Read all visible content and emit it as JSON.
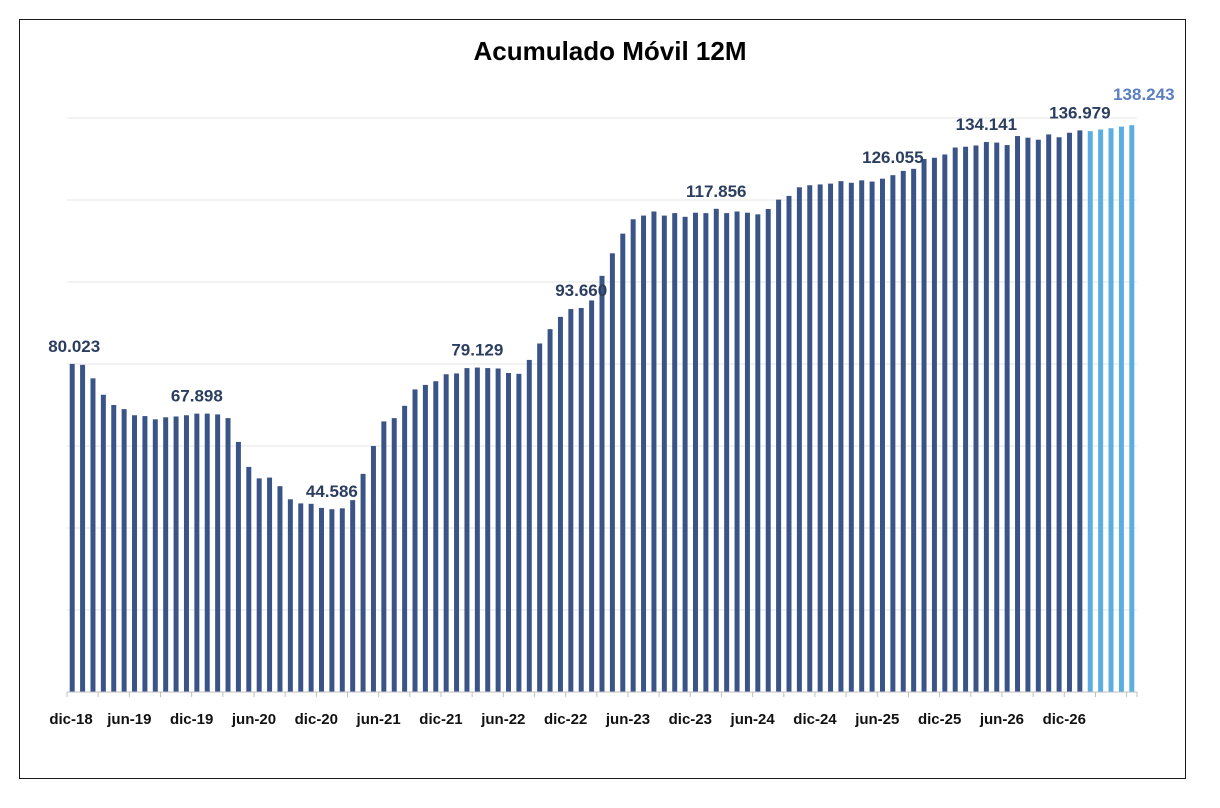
{
  "chart_data": {
    "type": "bar",
    "title": "Acumulado Móvil 12M",
    "xlabel": "",
    "ylabel": "",
    "ylim": [
      0,
      140000
    ],
    "grid": true,
    "legend": "none",
    "colors": {
      "actual": "#3a5488",
      "forecast": "#5aaee0",
      "grid": "#e6e6e6",
      "axis": "#bfbfbf"
    },
    "tick_labels": [
      "dic-18",
      "jun-19",
      "dic-19",
      "jun-20",
      "dic-20",
      "jun-21",
      "dic-21",
      "jun-22",
      "dic-22",
      "jun-23",
      "dic-23",
      "jun-24",
      "dic-24",
      "jun-25",
      "dic-25",
      "jun-26",
      "dic-26"
    ],
    "values": [
      80023,
      79800,
      76500,
      72500,
      70000,
      69000,
      67500,
      67300,
      66500,
      67000,
      67200,
      67500,
      67898,
      67900,
      67700,
      66800,
      61000,
      54900,
      52100,
      52300,
      50200,
      47000,
      46000,
      45900,
      44900,
      44586,
      44800,
      46800,
      53200,
      60000,
      66000,
      66800,
      69800,
      73800,
      74900,
      75800,
      77500,
      77700,
      79000,
      79129,
      79000,
      78900,
      77800,
      77600,
      81000,
      85000,
      88500,
      91500,
      93400,
      93660,
      95500,
      101500,
      107000,
      111800,
      115300,
      116200,
      117200,
      116200,
      116800,
      115900,
      116900,
      116800,
      117856,
      116800,
      117200,
      116900,
      116500,
      117800,
      120100,
      121000,
      123100,
      123600,
      123800,
      124000,
      124600,
      124200,
      124800,
      124500,
      125200,
      126055,
      127100,
      127600,
      130000,
      130300,
      131100,
      132800,
      133000,
      133300,
      134141,
      134000,
      133400,
      135600,
      135200,
      134700,
      136000,
      135300,
      136400,
      136979,
      136800,
      137200,
      137500,
      137900,
      138243
    ],
    "forecast_start_index": 97,
    "data_labels": [
      {
        "index": 0,
        "text": "80.023"
      },
      {
        "index": 12,
        "text": "67.898"
      },
      {
        "index": 25,
        "text": "44.586"
      },
      {
        "index": 39,
        "text": "79.129"
      },
      {
        "index": 49,
        "text": "93.660"
      },
      {
        "index": 62,
        "text": "117.856"
      },
      {
        "index": 79,
        "text": "126.055"
      },
      {
        "index": 88,
        "text": "134.141"
      },
      {
        "index": 97,
        "text": "136.979"
      },
      {
        "index": 102,
        "text": "138.243",
        "forecast": true
      }
    ]
  }
}
